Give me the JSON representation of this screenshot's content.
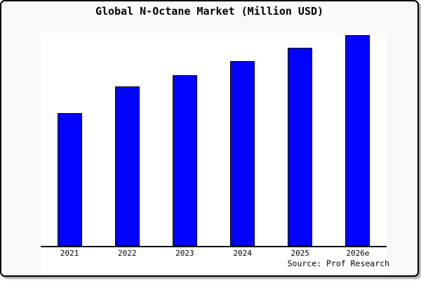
{
  "window": {
    "outer_background": "#ffffff",
    "panel_background": "#f9f9f9",
    "panel_border_color": "#000000",
    "panel_shadow_color": "#a9a9a9"
  },
  "chart_data": {
    "type": "bar",
    "title": "Global N-Octane Market (Million USD)",
    "categories": [
      "2021",
      "2022",
      "2023",
      "2024",
      "2025",
      "2026e"
    ],
    "values": [
      189,
      227,
      243,
      263,
      282,
      300
    ],
    "value_note": "no y-axis or data labels shown in source image; values are relative bar heights (pixels), plot max = 302",
    "ylim": [
      0,
      302
    ],
    "xlabel": "",
    "ylabel": "",
    "grid": false,
    "legend": false,
    "source": "Source: Prof Research",
    "bar_fill": "#0101fe",
    "bar_border": "#000000",
    "axis_color": "#000000",
    "plot_background": "#ffffff"
  }
}
